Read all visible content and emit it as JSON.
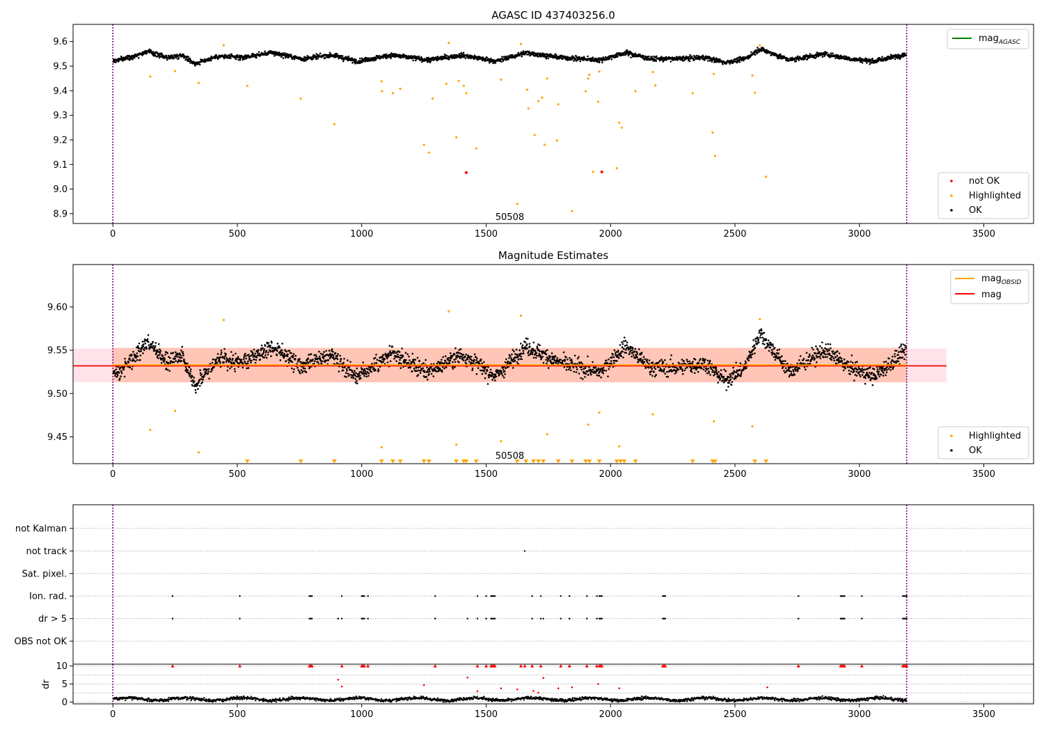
{
  "figure": {
    "top_title": "AGASC ID 437403256.0",
    "middle_title": "Magnitude Estimates",
    "obsid_label": "50508"
  },
  "colors": {
    "ok": "#000000",
    "highlighted": "#ffa500",
    "not_ok": "#ff0000",
    "mag_agasc_line": "#008000",
    "mag_obsid_line": "#ffa500",
    "mag_line": "#ff0000",
    "obs_band": "#ffa07a",
    "mag_band": "#ffc0cb",
    "obs_boundary": "#800080",
    "grid": "#b0b0b0"
  },
  "chart_data": [
    {
      "id": "agasc",
      "type": "scatter",
      "title": "AGASC ID 437403256.0",
      "xlim": [
        -160,
        3700
      ],
      "ylim": [
        8.86,
        9.67
      ],
      "xticks": [
        0,
        500,
        1000,
        1500,
        2000,
        2500,
        3000,
        3500
      ],
      "yticks": [
        8.9,
        9.0,
        9.1,
        9.2,
        9.3,
        9.4,
        9.5,
        9.6
      ],
      "ytick_labels": [
        "8.9",
        "9.0",
        "9.1",
        "9.2",
        "9.3",
        "9.4",
        "9.5",
        "9.6"
      ],
      "obs_boundaries": [
        0,
        3190
      ],
      "obsid_text": {
        "text": "50508",
        "x": 1595,
        "y": 8.885
      },
      "ok_trend": {
        "description": "dense black band",
        "base": 9.532,
        "knots_x": [
          0,
          80,
          140,
          220,
          280,
          330,
          420,
          520,
          640,
          760,
          880,
          980,
          1120,
          1270,
          1400,
          1540,
          1660,
          1800,
          1960,
          2060,
          2160,
          2260,
          2380,
          2460,
          2540,
          2600,
          2720,
          2860,
          2960,
          3060,
          3190
        ],
        "knots_y": [
          9.52,
          9.54,
          9.56,
          9.535,
          9.545,
          9.51,
          9.54,
          9.535,
          9.555,
          9.53,
          9.545,
          9.52,
          9.545,
          9.525,
          9.545,
          9.52,
          9.555,
          9.535,
          9.525,
          9.555,
          9.53,
          9.53,
          9.535,
          9.515,
          9.53,
          9.57,
          9.525,
          9.55,
          9.53,
          9.52,
          9.55
        ],
        "spread": 0.012
      },
      "highlighted_points": {
        "x": [
          150,
          250,
          345,
          445,
          540,
          755,
          890,
          1080,
          1082,
          1125,
          1155,
          1250,
          1270,
          1285,
          1340,
          1350,
          1380,
          1390,
          1410,
          1420,
          1460,
          1560,
          1625,
          1640,
          1665,
          1670,
          1695,
          1710,
          1725,
          1735,
          1745,
          1785,
          1790,
          1845,
          1900,
          1910,
          1915,
          1930,
          1950,
          1955,
          2025,
          2035,
          2045,
          2100,
          2170,
          2180,
          2330,
          2410,
          2415,
          2420,
          2570,
          2580,
          2600,
          2625
        ],
        "y": [
          9.458,
          9.48,
          9.432,
          9.585,
          9.42,
          9.368,
          9.264,
          9.438,
          9.398,
          9.39,
          9.408,
          9.18,
          9.148,
          9.368,
          9.428,
          9.595,
          9.21,
          9.44,
          9.42,
          9.39,
          9.165,
          9.445,
          8.94,
          9.59,
          9.404,
          9.328,
          9.22,
          9.358,
          9.372,
          9.18,
          9.45,
          9.198,
          9.345,
          8.91,
          9.398,
          9.45,
          9.465,
          9.07,
          9.355,
          9.478,
          9.085,
          9.27,
          9.25,
          9.398,
          9.476,
          9.422,
          9.39,
          9.23,
          9.468,
          9.135,
          9.462,
          9.392,
          9.585,
          9.05
        ]
      },
      "not_ok_points": {
        "x": [
          1420,
          1965
        ],
        "y": [
          9.067,
          9.07
        ]
      },
      "legend_lines": [
        {
          "label": "mag",
          "subscript": "AGASC",
          "color": "#008000"
        }
      ],
      "legend_points": [
        {
          "label": "not OK",
          "color": "#ff0000"
        },
        {
          "label": "Highlighted",
          "color": "#ffa500"
        },
        {
          "label": "OK",
          "color": "#000000"
        }
      ]
    },
    {
      "id": "magnitude",
      "type": "scatter",
      "title": "Magnitude Estimates",
      "xlim": [
        -160,
        3700
      ],
      "ylim": [
        9.419,
        9.649
      ],
      "xticks": [
        0,
        500,
        1000,
        1500,
        2000,
        2500,
        3000,
        3500
      ],
      "yticks": [
        9.45,
        9.5,
        9.55,
        9.6
      ],
      "ytick_labels": [
        "9.45",
        "9.50",
        "9.55",
        "9.60"
      ],
      "obs_boundaries": [
        0,
        3190
      ],
      "obsid_text": {
        "text": "50508",
        "x": 1595,
        "y": 9.428
      },
      "mag_obsid": {
        "value": 9.533,
        "x_range": [
          0,
          3190
        ],
        "band": [
          9.513,
          9.553
        ]
      },
      "mag": {
        "value": 9.532,
        "x_range": [
          -160,
          3350
        ],
        "band": [
          9.513,
          9.552
        ]
      },
      "ok_trend": {
        "description": "dense black band",
        "base": 9.532,
        "knots_x": [
          0,
          80,
          140,
          220,
          280,
          330,
          420,
          520,
          640,
          760,
          880,
          980,
          1120,
          1270,
          1400,
          1540,
          1660,
          1800,
          1960,
          2060,
          2160,
          2260,
          2380,
          2460,
          2540,
          2600,
          2720,
          2860,
          2960,
          3060,
          3190
        ],
        "knots_y": [
          9.52,
          9.54,
          9.56,
          9.535,
          9.545,
          9.51,
          9.54,
          9.535,
          9.555,
          9.53,
          9.545,
          9.52,
          9.545,
          9.525,
          9.545,
          9.52,
          9.555,
          9.535,
          9.525,
          9.555,
          9.53,
          9.53,
          9.535,
          9.515,
          9.53,
          9.57,
          9.525,
          9.55,
          9.53,
          9.52,
          9.55
        ],
        "spread": 0.012
      },
      "highlighted_points": {
        "x": [
          150,
          250,
          345,
          445,
          1080,
          1350,
          1380,
          1560,
          1640,
          1745,
          1910,
          1955,
          2035,
          2170,
          2415,
          2570,
          2600
        ],
        "y": [
          9.458,
          9.48,
          9.432,
          9.585,
          9.438,
          9.595,
          9.441,
          9.445,
          9.59,
          9.453,
          9.464,
          9.478,
          9.439,
          9.476,
          9.468,
          9.462,
          9.586
        ]
      },
      "offscale_markers_x": [
        540,
        755,
        890,
        1080,
        1125,
        1155,
        1250,
        1270,
        1380,
        1410,
        1420,
        1460,
        1625,
        1660,
        1690,
        1710,
        1730,
        1790,
        1845,
        1900,
        1915,
        1955,
        2025,
        2040,
        2055,
        2100,
        2330,
        2410,
        2420,
        2580,
        2625
      ],
      "legend_lines": [
        {
          "label": "mag",
          "subscript": "OBSID",
          "color": "#ffa500"
        },
        {
          "label": "mag",
          "subscript": "",
          "color": "#ff0000"
        }
      ],
      "legend_points": [
        {
          "label": "Highlighted",
          "color": "#ffa500"
        },
        {
          "label": "OK",
          "color": "#000000"
        }
      ]
    },
    {
      "id": "flags",
      "type": "scatter",
      "xlim": [
        -160,
        3700
      ],
      "categories": [
        "not Kalman",
        "not track",
        "Sat. pixel.",
        "Ion. rad.",
        "dr > 5",
        "OBS not OK"
      ],
      "obs_boundaries": [
        0,
        3190
      ],
      "flag_points": {
        "not Kalman": [],
        "not track": [
          1655
        ],
        "Sat. pixel.": [],
        "Ion. rad.": [
          240,
          510,
          790,
          795,
          800,
          920,
          1000,
          1005,
          1010,
          1025,
          1295,
          1465,
          1500,
          1520,
          1525,
          1530,
          1535,
          1685,
          1720,
          1800,
          1835,
          1905,
          1945,
          1955,
          1960,
          1965,
          2210,
          2215,
          2220,
          2755,
          2925,
          2930,
          2935,
          2940,
          3010,
          3175,
          3180,
          3185,
          3190
        ],
        "dr > 5": [
          240,
          510,
          790,
          795,
          800,
          905,
          920,
          1000,
          1005,
          1010,
          1025,
          1295,
          1425,
          1465,
          1500,
          1520,
          1525,
          1530,
          1535,
          1685,
          1720,
          1730,
          1800,
          1835,
          1905,
          1945,
          1955,
          1960,
          1965,
          2210,
          2215,
          2220,
          2755,
          2925,
          2930,
          2935,
          2940,
          3010,
          3175,
          3180,
          3185,
          3190
        ],
        "OBS not OK": []
      }
    },
    {
      "id": "dr",
      "type": "scatter",
      "xlim": [
        -160,
        3700
      ],
      "ylim": [
        -0.5,
        10.5
      ],
      "ylabel": "dr",
      "yticks": [
        0,
        5,
        10
      ],
      "ytick_labels": [
        "0",
        "5",
        "10"
      ],
      "obs_boundaries": [
        0,
        3190
      ],
      "baseline": {
        "base": 0.8,
        "spread": 0.6
      },
      "clipped_points_x": [
        240,
        510,
        790,
        795,
        800,
        920,
        1000,
        1005,
        1010,
        1025,
        1295,
        1465,
        1500,
        1520,
        1525,
        1530,
        1535,
        1640,
        1655,
        1685,
        1720,
        1800,
        1835,
        1905,
        1945,
        1955,
        1960,
        1965,
        2210,
        2215,
        2220,
        2755,
        2925,
        2930,
        2935,
        2940,
        3010,
        3175,
        3180,
        3185,
        3190
      ],
      "mid_points": {
        "x": [
          905,
          920,
          1250,
          1425,
          1465,
          1560,
          1625,
          1690,
          1710,
          1730,
          1790,
          1845,
          1950,
          2035,
          2630
        ],
        "y": [
          6.2,
          4.3,
          4.7,
          6.8,
          3.0,
          3.8,
          3.5,
          3.1,
          2.6,
          6.7,
          3.8,
          4.1,
          5.0,
          3.8,
          4.1
        ]
      }
    }
  ]
}
